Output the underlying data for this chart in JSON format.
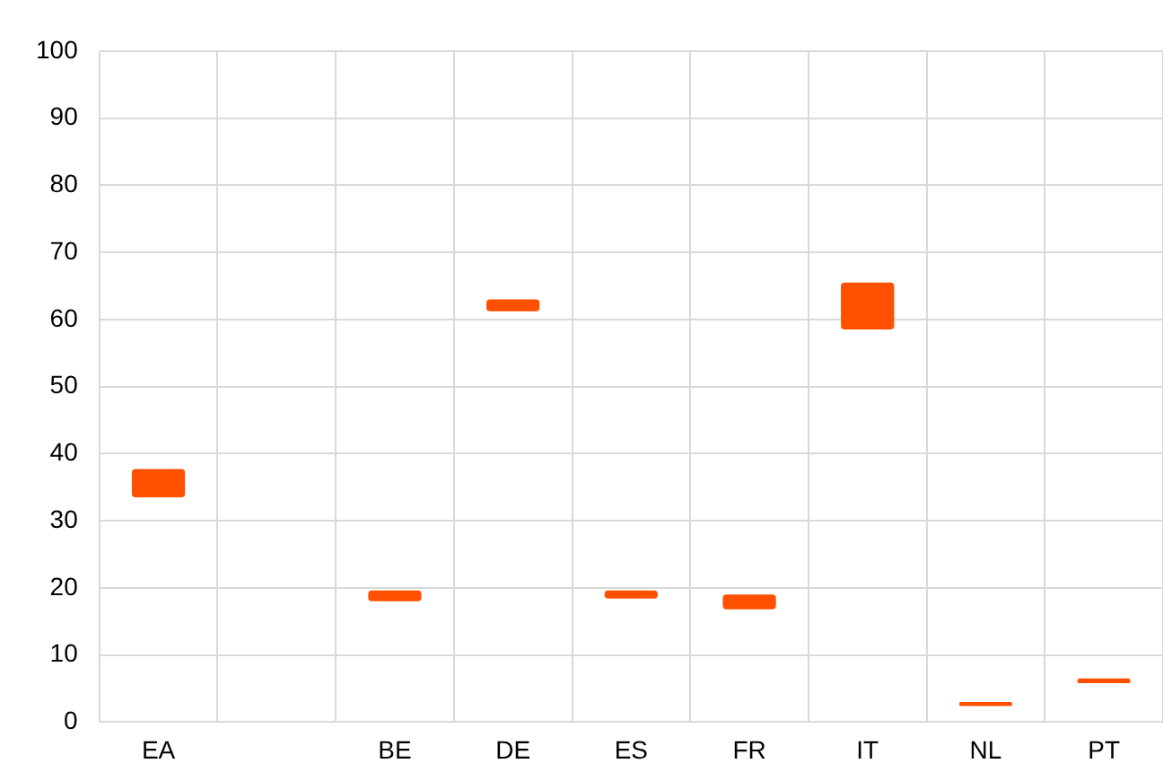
{
  "chart_data": {
    "type": "bar",
    "categories": [
      "EA",
      null,
      "BE",
      "DE",
      "ES",
      "FR",
      "IT",
      "NL",
      "PT"
    ],
    "base": [
      33.5,
      null,
      18.0,
      61.2,
      18.4,
      16.8,
      58.5,
      2.4,
      5.8
    ],
    "values": [
      4.2,
      null,
      1.6,
      1.8,
      1.2,
      2.2,
      7.0,
      0.6,
      0.7
    ],
    "color": "#ff5000",
    "ylim": [
      0,
      100
    ],
    "yticks": [
      0,
      10,
      20,
      30,
      40,
      50,
      60,
      70,
      80,
      90,
      100
    ],
    "grid": true,
    "legend": false
  }
}
